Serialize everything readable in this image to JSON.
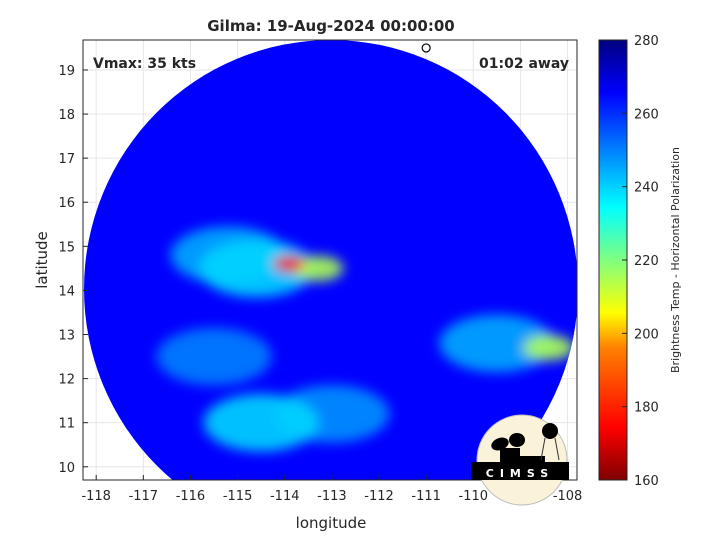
{
  "chart_data": {
    "type": "heatmap",
    "title": "Gilma: 19-Aug-2024 00:00:00",
    "xlabel": "longitude",
    "ylabel": "latitude",
    "xlim": [
      -118.28,
      -107.8
    ],
    "ylim": [
      9.7,
      19.68
    ],
    "xticks": [
      -118,
      -117,
      -116,
      -115,
      -114,
      -113,
      -112,
      -111,
      -110,
      -109,
      -108
    ],
    "yticks": [
      10,
      11,
      12,
      13,
      14,
      15,
      16,
      17,
      18,
      19
    ],
    "grid": true,
    "annotations": {
      "left": "Vmax: 35 kts",
      "right": "01:02 away"
    },
    "storm_center": {
      "lon": -111.0,
      "lat": 19.5
    },
    "colorbar": {
      "label": "Brightness Temp - Horizontal Polarization",
      "range": [
        160,
        280
      ],
      "ticks": [
        160,
        180,
        200,
        220,
        240,
        260,
        280
      ]
    },
    "swath": {
      "center_lon": -113.2,
      "center_lat": 14.5,
      "background_value": 265
    },
    "features": [
      {
        "lon": -113.9,
        "lat": 14.6,
        "value": 175
      },
      {
        "lon": -113.3,
        "lat": 14.5,
        "value": 215
      },
      {
        "lon": -114.6,
        "lat": 14.5,
        "value": 240
      },
      {
        "lon": -115.2,
        "lat": 14.8,
        "value": 245
      },
      {
        "lon": -114.5,
        "lat": 11.0,
        "value": 240
      },
      {
        "lon": -113.0,
        "lat": 11.2,
        "value": 248
      },
      {
        "lon": -109.5,
        "lat": 12.8,
        "value": 245
      },
      {
        "lon": -108.4,
        "lat": 12.7,
        "value": 215
      },
      {
        "lon": -115.5,
        "lat": 12.5,
        "value": 250
      }
    ]
  },
  "logo": "CIMSS"
}
